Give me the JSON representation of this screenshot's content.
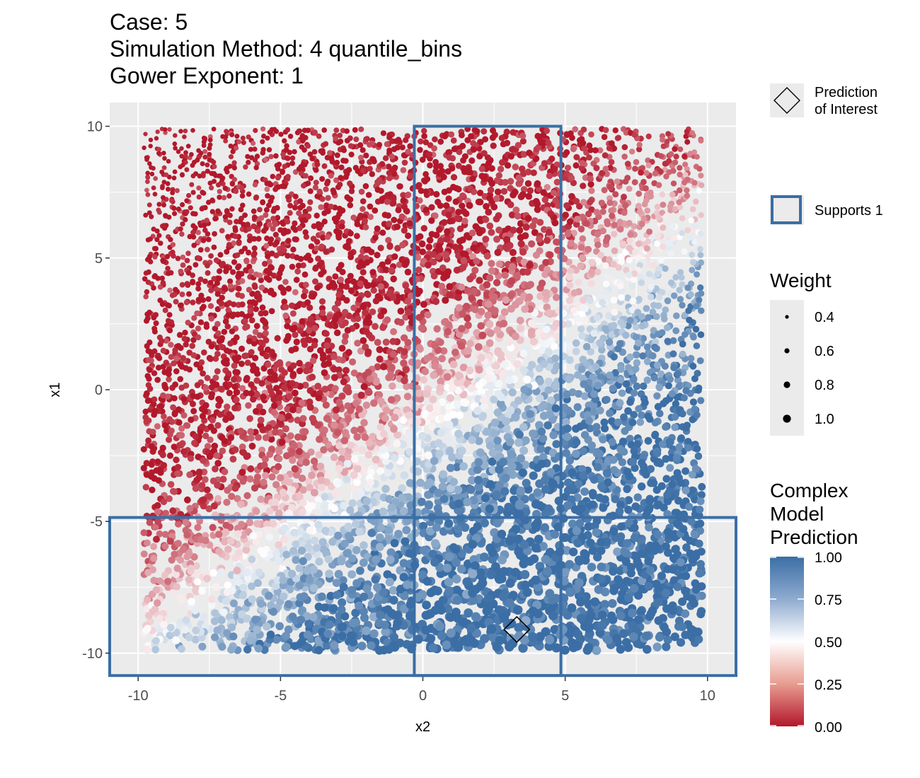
{
  "title_lines": [
    "Case: 5",
    "Simulation Method: 4 quantile_bins",
    "Gower Exponent: 1"
  ],
  "chart_data": {
    "type": "scatter",
    "xlabel": "x2",
    "ylabel": "x1",
    "xlim": [
      -11,
      11
    ],
    "ylim": [
      -10.9,
      10.9
    ],
    "x_ticks": [
      -10,
      -5,
      0,
      5,
      10
    ],
    "x_tick_labels": [
      "-10",
      "-5",
      "0",
      "5",
      "10"
    ],
    "y_ticks": [
      10,
      5,
      0,
      -5,
      -10
    ],
    "y_tick_labels": [
      "10",
      "5",
      "0",
      "-5",
      "-10"
    ],
    "grid": true,
    "points_approx_count": 7000,
    "prediction_of_interest": {
      "x2": 3.3,
      "x1": -9.1
    },
    "supports": [
      {
        "x2": [
          -0.3,
          4.85
        ],
        "x1": [
          -10.85,
          10.0
        ]
      },
      {
        "x2": [
          -11.0,
          11.0
        ],
        "x1": [
          -10.85,
          -4.85
        ]
      }
    ],
    "weight_legend": [
      0.4,
      0.6,
      0.8,
      1.0
    ],
    "color_scale": {
      "low": "#b2182b",
      "mid": "#ffffff",
      "high": "#3b6ea5",
      "min": 0,
      "max": 1,
      "midpoint": 0.5
    },
    "legend_position": "right"
  },
  "legend": {
    "shape_label_line1": "Prediction",
    "shape_label_line2": "of Interest",
    "supports_label": "Supports 1",
    "weight_title": "Weight",
    "weight_labels": [
      "0.4",
      "0.6",
      "0.8",
      "1.0"
    ],
    "color_title_lines": [
      "Complex",
      "Model",
      "Prediction"
    ],
    "color_labels": [
      "1.00",
      "0.75",
      "0.50",
      "0.25",
      "0.00"
    ]
  },
  "colors": {
    "panel_bg": "#ebebeb",
    "grid": "#ffffff",
    "support_outline": "#3b6ea5",
    "high": "#3b6ea5",
    "mid": "#ffffff",
    "low": "#b2182b"
  }
}
